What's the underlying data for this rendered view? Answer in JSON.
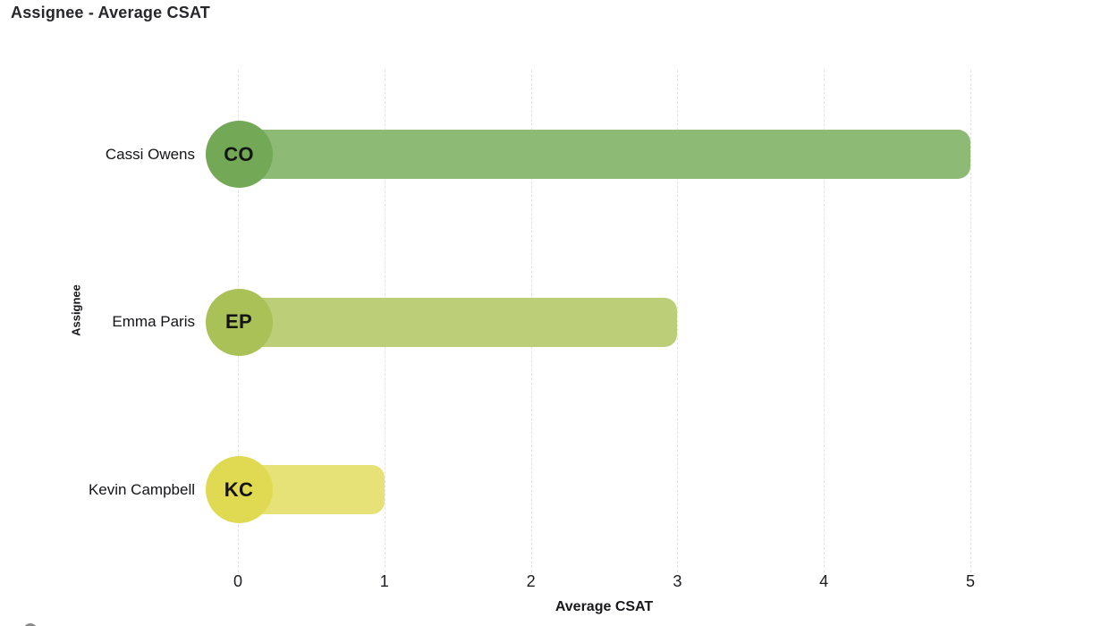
{
  "chart_data": {
    "type": "bar",
    "orientation": "horizontal",
    "title": "Assignee - Average CSAT",
    "xlabel": "Average CSAT",
    "ylabel": "Assignee",
    "xlim": [
      0,
      5
    ],
    "xticks": [
      "0",
      "1",
      "2",
      "3",
      "4",
      "5"
    ],
    "grid": "vertical dashed gridlines",
    "legend_position": "none",
    "categories": [
      "Cassi Owens",
      "Emma Paris",
      "Kevin Campbell"
    ],
    "values": [
      5,
      3,
      1
    ],
    "rows": [
      {
        "name": "Cassi Owens",
        "initials": "CO",
        "value": 5,
        "avatar_color": "#73a956",
        "bar_color": "#8dba74"
      },
      {
        "name": "Emma Paris",
        "initials": "EP",
        "value": 3,
        "avatar_color": "#a9c157",
        "bar_color": "#bccf78"
      },
      {
        "name": "Kevin Campbell",
        "initials": "KC",
        "value": 1,
        "avatar_color": "#dfda52",
        "bar_color": "#e7e277"
      }
    ],
    "gridline_color": "#e3e3e3",
    "text_color": "#1c1c21"
  },
  "icons": {
    "bottom_left": "partial-gray-circle-icon"
  }
}
